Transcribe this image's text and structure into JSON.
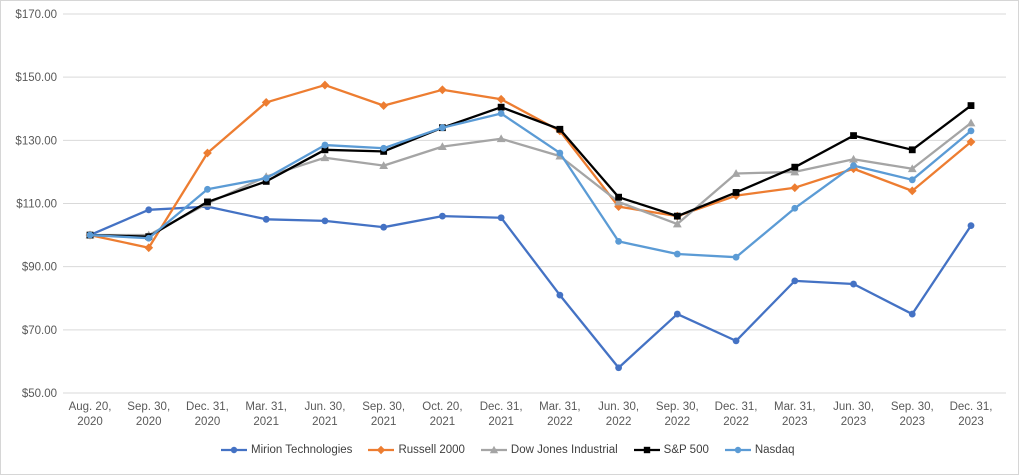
{
  "chart_data": {
    "type": "line",
    "title": "",
    "xlabel": "",
    "ylabel": "",
    "grid": true,
    "legend_position": "bottom",
    "y_axis": {
      "min": 50,
      "max": 170,
      "ticks": [
        {
          "label": "$170.00",
          "value": 170
        },
        {
          "label": "$150.00",
          "value": 150
        },
        {
          "label": "$130.00",
          "value": 130
        },
        {
          "label": "$110.00",
          "value": 110
        },
        {
          "label": "$90.00",
          "value": 90
        },
        {
          "label": "$70.00",
          "value": 70
        },
        {
          "label": "$50.00",
          "value": 50
        }
      ]
    },
    "categories": [
      [
        "Aug. 20,",
        "2020"
      ],
      [
        "Sep. 30,",
        "2020"
      ],
      [
        "Dec. 31,",
        "2020"
      ],
      [
        "Mar. 31,",
        "2021"
      ],
      [
        "Jun. 30,",
        "2021"
      ],
      [
        "Sep. 30,",
        "2021"
      ],
      [
        "Oct. 20,",
        "2021"
      ],
      [
        "Dec. 31,",
        "2021"
      ],
      [
        "Mar. 31,",
        "2022"
      ],
      [
        "Jun. 30,",
        "2022"
      ],
      [
        "Sep. 30,",
        "2022"
      ],
      [
        "Dec. 31,",
        "2022"
      ],
      [
        "Mar. 31,",
        "2023"
      ],
      [
        "Jun. 30,",
        "2023"
      ],
      [
        "Sep. 30,",
        "2023"
      ],
      [
        "Dec. 31,",
        "2023"
      ]
    ],
    "series": [
      {
        "name": "Mirion Technologies",
        "color": "#4472C4",
        "marker": "circle",
        "values": [
          100,
          108,
          109,
          105,
          104.5,
          102.5,
          106,
          105.5,
          81,
          58,
          75,
          66.5,
          85.5,
          84.5,
          75,
          103
        ]
      },
      {
        "name": "Russell 2000",
        "color": "#ED7D31",
        "marker": "diamond",
        "values": [
          100,
          96,
          126,
          142,
          147.5,
          141,
          146,
          143,
          133,
          109,
          106,
          112.5,
          115,
          121,
          114,
          129.5
        ]
      },
      {
        "name": "Dow Jones Industrial",
        "color": "#A5A5A5",
        "marker": "triangle",
        "values": [
          100,
          100,
          110,
          118.5,
          124.5,
          122,
          128,
          130.5,
          125,
          110.5,
          103.5,
          119.5,
          120,
          124,
          121,
          135.5
        ]
      },
      {
        "name": "S&P 500",
        "color": "#000000",
        "marker": "square",
        "values": [
          100,
          99.5,
          110.5,
          117,
          127,
          126.5,
          134,
          140.5,
          133.5,
          112,
          106,
          113.5,
          121.5,
          131.5,
          127,
          141
        ]
      },
      {
        "name": "Nasdaq",
        "color": "#5B9BD5",
        "marker": "circle",
        "values": [
          100,
          99,
          114.5,
          118,
          128.5,
          127.5,
          134,
          138.5,
          126,
          98,
          94,
          93,
          108.5,
          122,
          117.5,
          133
        ]
      }
    ]
  }
}
